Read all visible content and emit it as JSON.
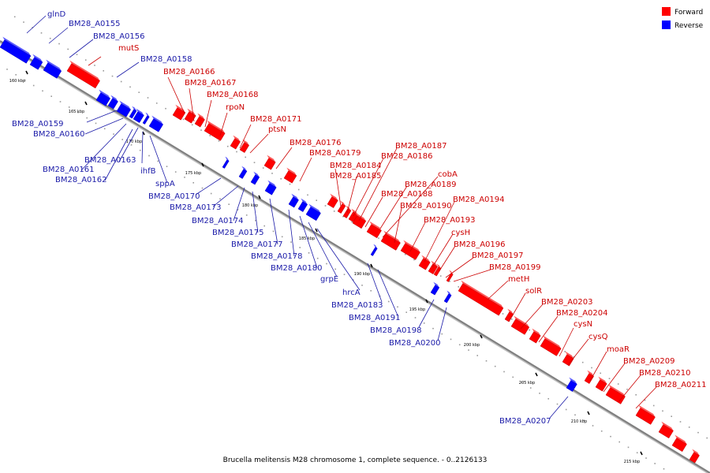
{
  "caption": "Brucella melitensis M28 chromosome 1, complete sequence. - 0..2126133",
  "legend": {
    "forward": {
      "label": "Forward",
      "color": "#ff0000"
    },
    "reverse": {
      "label": "Reverse",
      "color": "#0000ff"
    }
  },
  "colors": {
    "forward_label": "#cc0000",
    "reverse_label": "#1a1aa8",
    "backbone": "#808080"
  },
  "scale_ticks": [
    "160 kbp",
    "165 kbp",
    "170 kbp",
    "175 kbp",
    "180 kbp",
    "185 kbp",
    "190 kbp",
    "195 kbp",
    "200 kbp",
    "205 kbp",
    "210 kbp",
    "215 kbp"
  ],
  "forward_genes": [
    "mutS",
    "BM28_A0166",
    "BM28_A0167",
    "BM28_A0168",
    "rpoN",
    "BM28_A0171",
    "ptsN",
    "BM28_A0176",
    "BM28_A0179",
    "BM28_A0184",
    "BM28_A0185",
    "BM28_A0186",
    "BM28_A0187",
    "BM28_A0188",
    "cobA",
    "BM28_A0189",
    "BM28_A0190",
    "BM28_A0193",
    "BM28_A0194",
    "cysH",
    "BM28_A0196",
    "BM28_A0197",
    "BM28_A0199",
    "metH",
    "solR",
    "BM28_A0203",
    "BM28_A0204",
    "cysN",
    "cysQ",
    "moaR",
    "BM28_A0209",
    "BM28_A0210",
    "BM28_A0211"
  ],
  "reverse_genes": [
    "glnD",
    "BM28_A0155",
    "BM28_A0156",
    "BM28_A0158",
    "BM28_A0159",
    "BM28_A0160",
    "BM28_A0161",
    "BM28_A0162",
    "BM28_A0163",
    "ihfB",
    "sppA",
    "BM28_A0170",
    "BM28_A0173",
    "BM28_A0174",
    "BM28_A0175",
    "BM28_A0177",
    "BM28_A0178",
    "BM28_A0180",
    "grpE",
    "hrcA",
    "BM28_A0183",
    "BM28_A0191",
    "BM28_A0198",
    "BM28_A0200",
    "BM28_A0207"
  ]
}
